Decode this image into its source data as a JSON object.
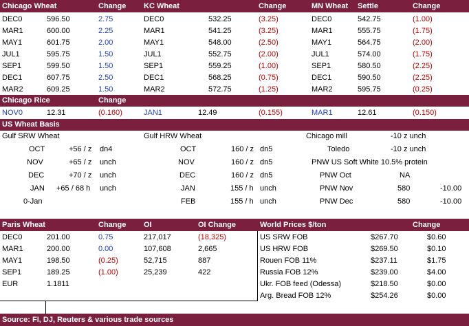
{
  "futures": {
    "headers": [
      "Chicago Wheat",
      "Change",
      "KC Wheat",
      "Change",
      "MN Wheat",
      "Settle",
      "Change"
    ],
    "rows": [
      {
        "c_mo": "DEC0",
        "c_px": "596.50",
        "c_ch": "2.75",
        "k_mo": "DEC0",
        "k_px": "532.25",
        "k_ch": "(3.25)",
        "m_mo": "DEC0",
        "m_px": "542.75",
        "m_ch": "(1.00)"
      },
      {
        "c_mo": "MAR1",
        "c_px": "600.00",
        "c_ch": "2.25",
        "k_mo": "MAR1",
        "k_px": "541.25",
        "k_ch": "(3.25)",
        "m_mo": "MAR1",
        "m_px": "555.75",
        "m_ch": "(1.75)"
      },
      {
        "c_mo": "MAY1",
        "c_px": "601.75",
        "c_ch": "2.00",
        "k_mo": "MAY1",
        "k_px": "548.00",
        "k_ch": "(2.50)",
        "m_mo": "MAY1",
        "m_px": "564.75",
        "m_ch": "(2.00)"
      },
      {
        "c_mo": "JUL1",
        "c_px": "595.75",
        "c_ch": "1.50",
        "k_mo": "JUL1",
        "k_px": "552.75",
        "k_ch": "(2.00)",
        "m_mo": "JUL1",
        "m_px": "574.00",
        "m_ch": "(1.75)"
      },
      {
        "c_mo": "SEP1",
        "c_px": "599.50",
        "c_ch": "1.50",
        "k_mo": "SEP1",
        "k_px": "559.25",
        "k_ch": "(1.00)",
        "m_mo": "SEP1",
        "m_px": "580.50",
        "m_ch": "(2.25)"
      },
      {
        "c_mo": "DEC1",
        "c_px": "607.75",
        "c_ch": "2.50",
        "k_mo": "DEC1",
        "k_px": "568.25",
        "k_ch": "(0.75)",
        "m_mo": "DEC1",
        "m_px": "590.50",
        "m_ch": "(2.25)"
      },
      {
        "c_mo": "MAR2",
        "c_px": "609.25",
        "c_ch": "1.50",
        "k_mo": "MAR2",
        "k_px": "572.75",
        "k_ch": "(1.25)",
        "m_mo": "MAR2",
        "m_px": "595.75",
        "m_ch": "(0.25)"
      }
    ]
  },
  "rice": {
    "title": "Chicago Rice",
    "change_label": "Change",
    "items": [
      {
        "mo": "NOV0",
        "px": "12.31",
        "ch": "(0.160)"
      },
      {
        "mo": "JAN1",
        "px": "12.49",
        "ch": "(0.155)"
      },
      {
        "mo": "MAR1",
        "px": "12.61",
        "ch": "(0.150)"
      }
    ]
  },
  "basis": {
    "title": "US Wheat Basis",
    "gulf_srw_label": "Gulf SRW Wheat",
    "gulf_hrw_label": "Gulf HRW Wheat",
    "srw": [
      {
        "mo": "OCT",
        "val": "+56 / z",
        "tag": "dn4"
      },
      {
        "mo": "NOV",
        "val": "+65 / z",
        "tag": "unch"
      },
      {
        "mo": "DEC",
        "val": "+70 / z",
        "tag": "unch"
      },
      {
        "mo": "JAN",
        "val": "+65 / 68 h",
        "tag": "unch"
      },
      {
        "mo": "0-Jan",
        "val": "",
        "tag": ""
      }
    ],
    "hrw": [
      {
        "mo": "OCT",
        "val": "160 / z",
        "tag": "dn5"
      },
      {
        "mo": "NOV",
        "val": "160 / z",
        "tag": "dn5"
      },
      {
        "mo": "DEC",
        "val": "160 / z",
        "tag": "dn5"
      },
      {
        "mo": "JAN",
        "val": "155 / h",
        "tag": "unch"
      },
      {
        "mo": "FEB",
        "val": "155 / h",
        "tag": "unch"
      }
    ],
    "chicago_mill": {
      "label": "Chicago mill",
      "val": "-10 z unch"
    },
    "toledo": {
      "label": "Toledo",
      "val": "-10 z unch"
    },
    "pnw_title": "PNW US Soft White 10.5% protein",
    "pnw": [
      {
        "label": "PNW Oct",
        "val": "NA",
        "ch": ""
      },
      {
        "label": "PNW Nov",
        "val": "580",
        "ch": "-10.00"
      },
      {
        "label": "PNW Dec",
        "val": "580",
        "ch": "-10.00"
      }
    ]
  },
  "paris": {
    "headers": [
      "Paris Wheat",
      "Change",
      "OI",
      "OI Change"
    ],
    "rows": [
      {
        "mo": "DEC0",
        "px": "201.00",
        "ch": "0.75",
        "oi": "217,017",
        "oich": "(18,325)"
      },
      {
        "mo": "MAR1",
        "px": "200.00",
        "ch": "0.00",
        "oi": "107,608",
        "oich": "2,665"
      },
      {
        "mo": "MAY1",
        "px": "198.50",
        "ch": "(0.25)",
        "oi": "52,715",
        "oich": "887"
      },
      {
        "mo": "SEP1",
        "px": "189.25",
        "ch": "(1.00)",
        "oi": "25,239",
        "oich": "422"
      }
    ],
    "eur_label": "EUR",
    "eur_val": "1.1811"
  },
  "world": {
    "title": "World Prices $/ton",
    "change_label": "Change",
    "rows": [
      {
        "name": "US SRW FOB",
        "px": "$267.70",
        "ch": "$0.60"
      },
      {
        "name": "US HRW FOB",
        "px": "$269.50",
        "ch": "$0.10"
      },
      {
        "name": "Rouen FOB 11%",
        "px": "$237.11",
        "ch": "$1.75"
      },
      {
        "name": "Russia FOB 12%",
        "px": "$239.00",
        "ch": "$4.00"
      },
      {
        "name": "Ukr. FOB feed (Odessa)",
        "px": "$218.50",
        "ch": "$0.00"
      },
      {
        "name": "Arg. Bread FOB 12%",
        "px": "$254.26",
        "ch": "$0.00"
      }
    ]
  },
  "source": "Source: FI, DJ, Reuters & various trade sources",
  "colors": {
    "header_bg": "#7a1f3d",
    "negative": "#c00000",
    "rice_month": "#1f3fbf"
  }
}
